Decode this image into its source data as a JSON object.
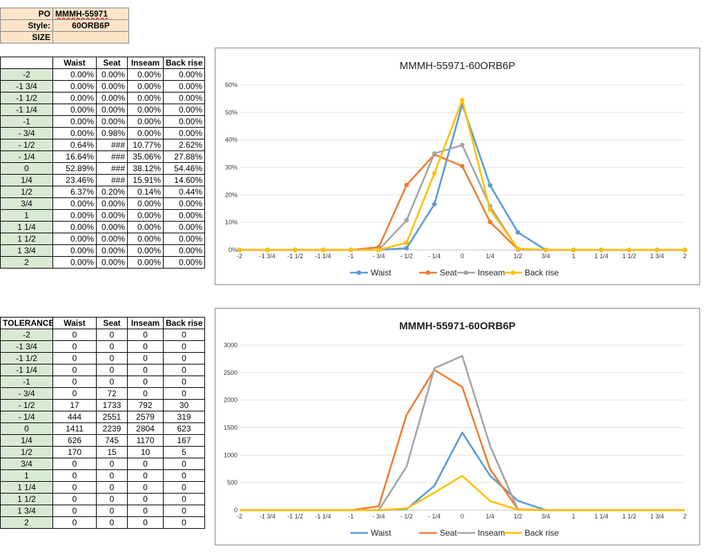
{
  "header": {
    "po_label": "PO",
    "po_value": "MMMH-55971",
    "style_label": "Style:",
    "style_value": "60ORB6P",
    "size_label": "SIZE",
    "size_value": ""
  },
  "table1": {
    "corner": "",
    "columns": [
      "Waist",
      "Seat",
      "Inseam",
      "Back rise"
    ],
    "rows": [
      {
        "label": "-2",
        "values": [
          "0.00%",
          "0.00%",
          "0.00%",
          "0.00%"
        ]
      },
      {
        "label": "-1 3/4",
        "values": [
          "0.00%",
          "0.00%",
          "0.00%",
          "0.00%"
        ]
      },
      {
        "label": "-1 1/2",
        "values": [
          "0.00%",
          "0.00%",
          "0.00%",
          "0.00%"
        ]
      },
      {
        "label": "-1 1/4",
        "values": [
          "0.00%",
          "0.00%",
          "0.00%",
          "0.00%"
        ]
      },
      {
        "label": "-1",
        "values": [
          "0.00%",
          "0.00%",
          "0.00%",
          "0.00%"
        ]
      },
      {
        "label": "- 3/4",
        "values": [
          "0.00%",
          "0.98%",
          "0.00%",
          "0.00%"
        ]
      },
      {
        "label": "- 1/2",
        "values": [
          "0.64%",
          "###",
          "10.77%",
          "2.62%"
        ]
      },
      {
        "label": "- 1/4",
        "values": [
          "16.64%",
          "###",
          "35.06%",
          "27.88%"
        ]
      },
      {
        "label": "0",
        "values": [
          "52.89%",
          "###",
          "38.12%",
          "54.46%"
        ]
      },
      {
        "label": "1/4",
        "values": [
          "23.46%",
          "###",
          "15.91%",
          "14.60%"
        ]
      },
      {
        "label": "1/2",
        "values": [
          "6.37%",
          "0.20%",
          "0.14%",
          "0.44%"
        ]
      },
      {
        "label": "3/4",
        "values": [
          "0.00%",
          "0.00%",
          "0.00%",
          "0.00%"
        ]
      },
      {
        "label": "1",
        "values": [
          "0.00%",
          "0.00%",
          "0.00%",
          "0.00%"
        ]
      },
      {
        "label": "1 1/4",
        "values": [
          "0.00%",
          "0.00%",
          "0.00%",
          "0.00%"
        ]
      },
      {
        "label": "1 1/2",
        "values": [
          "0.00%",
          "0.00%",
          "0.00%",
          "0.00%"
        ]
      },
      {
        "label": "1 3/4",
        "values": [
          "0.00%",
          "0.00%",
          "0.00%",
          "0.00%"
        ]
      },
      {
        "label": "2",
        "values": [
          "0.00%",
          "0.00%",
          "0.00%",
          "0.00%"
        ]
      }
    ]
  },
  "table2": {
    "corner": "TOLERANCE",
    "columns": [
      "Waist",
      "Seat",
      "Inseam",
      "Back rise"
    ],
    "rows": [
      {
        "label": "-2",
        "values": [
          "0",
          "0",
          "0",
          "0"
        ]
      },
      {
        "label": "-1 3/4",
        "values": [
          "0",
          "0",
          "0",
          "0"
        ]
      },
      {
        "label": "-1 1/2",
        "values": [
          "0",
          "0",
          "0",
          "0"
        ]
      },
      {
        "label": "-1 1/4",
        "values": [
          "0",
          "0",
          "0",
          "0"
        ]
      },
      {
        "label": "-1",
        "values": [
          "0",
          "0",
          "0",
          "0"
        ]
      },
      {
        "label": "- 3/4",
        "values": [
          "0",
          "72",
          "0",
          "0"
        ]
      },
      {
        "label": "- 1/2",
        "values": [
          "17",
          "1733",
          "792",
          "30"
        ]
      },
      {
        "label": "- 1/4",
        "values": [
          "444",
          "2551",
          "2579",
          "319"
        ]
      },
      {
        "label": "0",
        "values": [
          "1411",
          "2239",
          "2804",
          "623"
        ]
      },
      {
        "label": "1/4",
        "values": [
          "626",
          "745",
          "1170",
          "167"
        ]
      },
      {
        "label": "1/2",
        "values": [
          "170",
          "15",
          "10",
          "5"
        ]
      },
      {
        "label": "3/4",
        "values": [
          "0",
          "0",
          "0",
          "0"
        ]
      },
      {
        "label": "1",
        "values": [
          "0",
          "0",
          "0",
          "0"
        ]
      },
      {
        "label": "1 1/4",
        "values": [
          "0",
          "0",
          "0",
          "0"
        ]
      },
      {
        "label": "1 1/2",
        "values": [
          "0",
          "0",
          "0",
          "0"
        ]
      },
      {
        "label": "1 3/4",
        "values": [
          "0",
          "0",
          "0",
          "0"
        ]
      },
      {
        "label": "2",
        "values": [
          "0",
          "0",
          "0",
          "0"
        ]
      }
    ]
  },
  "chart_data": [
    {
      "type": "line",
      "title": "MMMH-55971-60ORB6P",
      "categories": [
        "-2",
        "-1 3/4",
        "-1 1/2",
        "-1 1/4",
        "-1",
        "- 3/4",
        "- 1/2",
        "- 1/4",
        "0",
        "1/4",
        "1/2",
        "3/4",
        "1",
        "1 1/4",
        "1 1/2",
        "1 3/4",
        "2"
      ],
      "y_ticks": [
        "0%",
        "10%",
        "20%",
        "30%",
        "40%",
        "50%",
        "60%"
      ],
      "ylim": [
        0,
        0.6
      ],
      "markers": true,
      "grid": true,
      "legend": "bottom",
      "series": [
        {
          "name": "Waist",
          "color": "#5b9bd5",
          "values": [
            0,
            0,
            0,
            0,
            0,
            0,
            0.0064,
            0.1664,
            0.5289,
            0.2346,
            0.0637,
            0,
            0,
            0,
            0,
            0,
            0
          ]
        },
        {
          "name": "Seat",
          "color": "#ed7d31",
          "values": [
            0,
            0,
            0,
            0,
            0,
            0.0098,
            0.2358,
            0.3471,
            0.3046,
            0.1014,
            0.002,
            0,
            0,
            0,
            0,
            0,
            0
          ]
        },
        {
          "name": "Inseam",
          "color": "#a5a5a5",
          "values": [
            0,
            0,
            0,
            0,
            0,
            0,
            0.1077,
            0.3506,
            0.3812,
            0.1591,
            0.0014,
            0,
            0,
            0,
            0,
            0,
            0
          ]
        },
        {
          "name": "Back rise",
          "color": "#ffc000",
          "values": [
            0,
            0,
            0,
            0,
            0,
            0,
            0.0262,
            0.2788,
            0.5446,
            0.146,
            0.0044,
            0,
            0,
            0,
            0,
            0,
            0
          ]
        }
      ]
    },
    {
      "type": "line",
      "title": "MMMH-55971-60ORB6P",
      "categories": [
        "-2",
        "-1 3/4",
        "-1 1/2",
        "-1 1/4",
        "-1",
        "- 3/4",
        "- 1/2",
        "- 1/4",
        "0",
        "1/4",
        "1/2",
        "3/4",
        "1",
        "1 1/4",
        "1 1/2",
        "1 3/4",
        "2"
      ],
      "y_ticks": [
        "0",
        "500",
        "1000",
        "1500",
        "2000",
        "2500",
        "3000"
      ],
      "ylim": [
        0,
        3000
      ],
      "markers": false,
      "grid": true,
      "legend": "bottom",
      "series": [
        {
          "name": "Waist",
          "color": "#5b9bd5",
          "values": [
            0,
            0,
            0,
            0,
            0,
            0,
            17,
            444,
            1411,
            626,
            170,
            0,
            0,
            0,
            0,
            0,
            0
          ]
        },
        {
          "name": "Seat",
          "color": "#ed7d31",
          "values": [
            0,
            0,
            0,
            0,
            0,
            72,
            1733,
            2551,
            2239,
            745,
            15,
            0,
            0,
            0,
            0,
            0,
            0
          ]
        },
        {
          "name": "Inseam",
          "color": "#a5a5a5",
          "values": [
            0,
            0,
            0,
            0,
            0,
            0,
            792,
            2579,
            2804,
            1170,
            10,
            0,
            0,
            0,
            0,
            0,
            0
          ]
        },
        {
          "name": "Back rise",
          "color": "#ffc000",
          "values": [
            0,
            0,
            0,
            0,
            0,
            0,
            30,
            319,
            623,
            167,
            5,
            0,
            0,
            0,
            0,
            0,
            0
          ]
        }
      ]
    }
  ]
}
